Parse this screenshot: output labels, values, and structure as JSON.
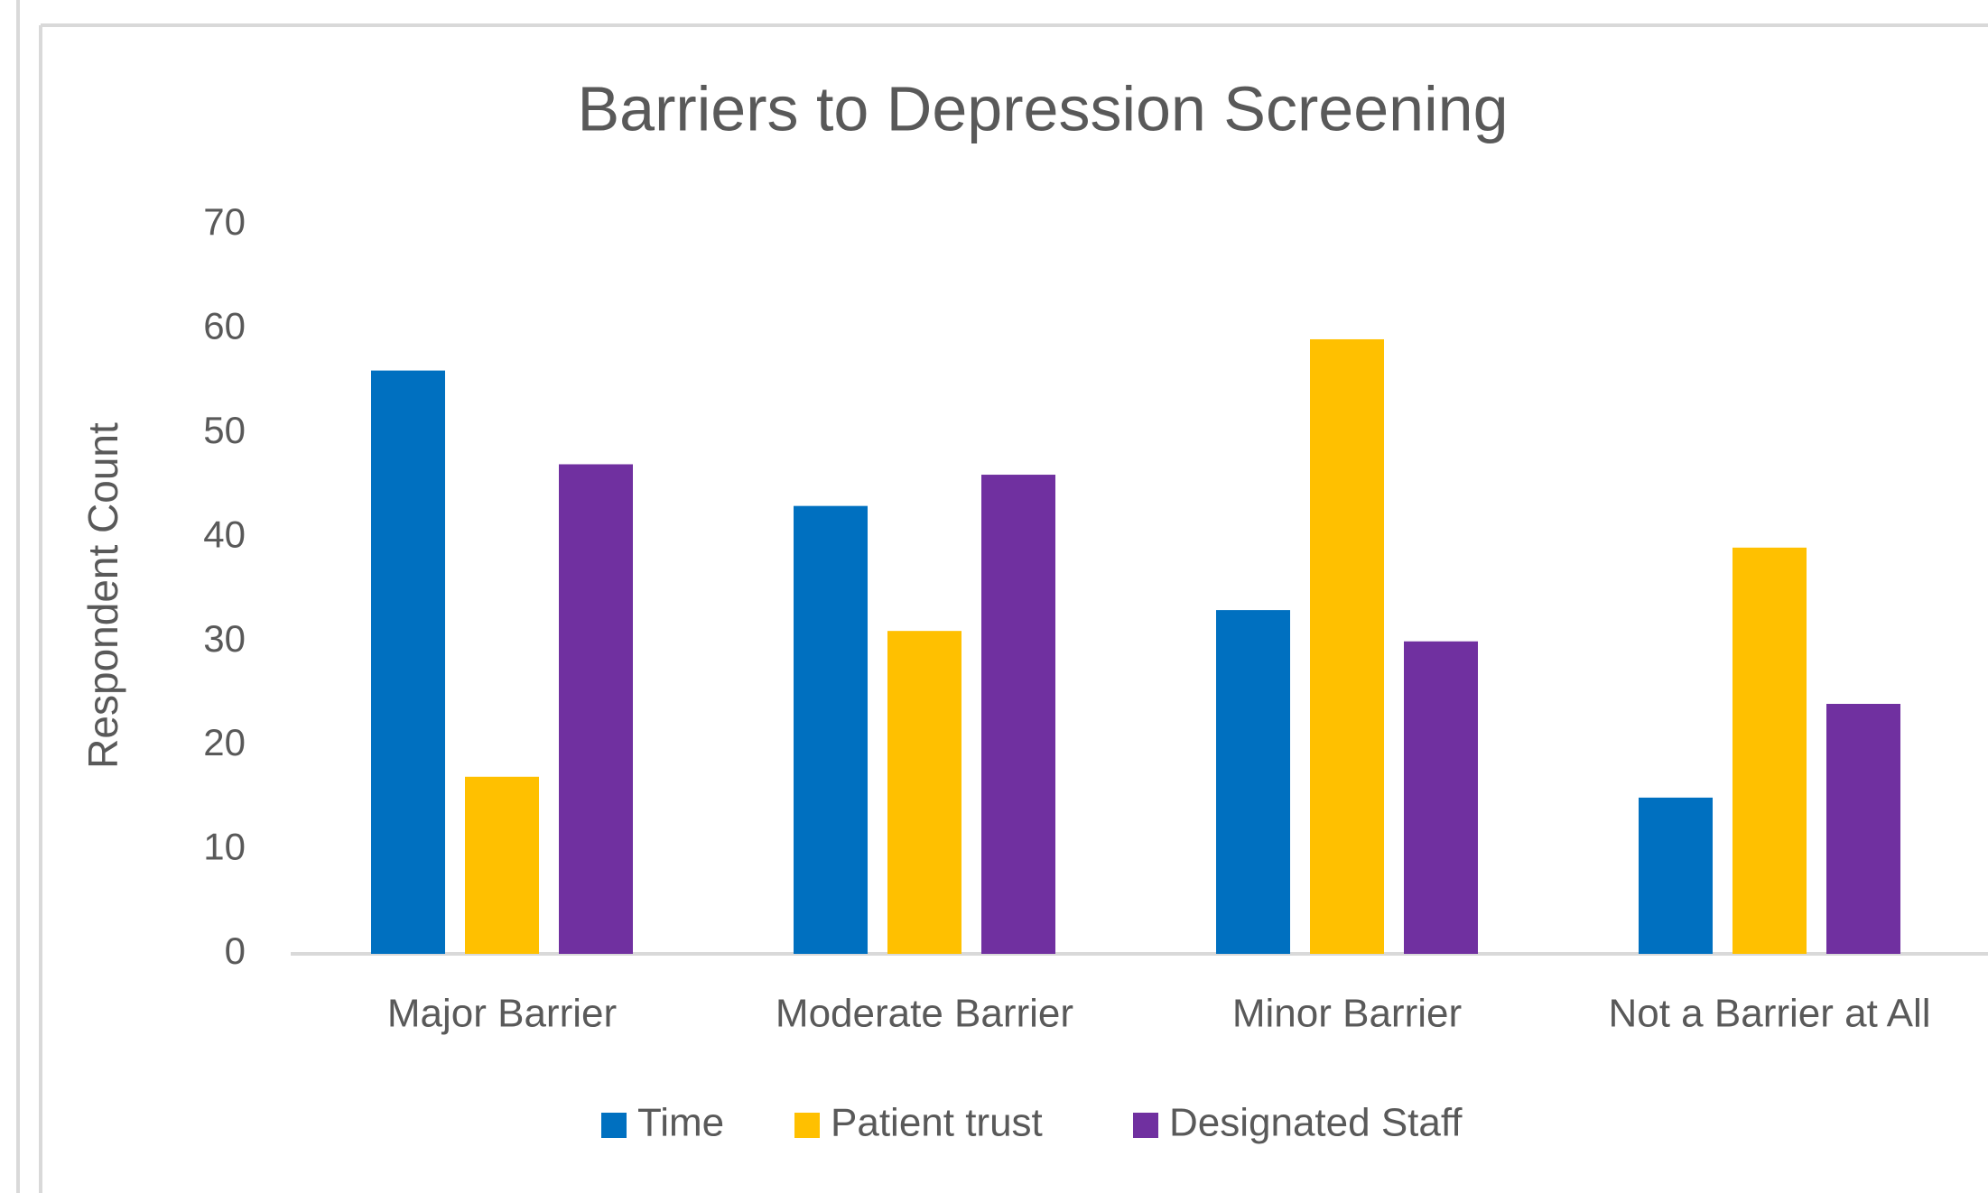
{
  "chart_data": {
    "type": "bar",
    "title": "Barriers to Depression Screening",
    "y_label": "Respondent Count",
    "categories": [
      "Major Barrier",
      "Moderate Barrier",
      "Minor Barrier",
      "Not a Barrier at All"
    ],
    "series": [
      {
        "name": "Time",
        "color": "#0070c0",
        "values": [
          56,
          43,
          33,
          15
        ]
      },
      {
        "name": "Patient trust",
        "color": "#ffc000",
        "values": [
          17,
          31,
          59,
          39
        ]
      },
      {
        "name": "Designated Staff",
        "color": "#7030a0",
        "values": [
          47,
          46,
          30,
          24
        ]
      }
    ],
    "ylim": [
      0,
      70
    ],
    "yticks": [
      0,
      10,
      20,
      30,
      40,
      50,
      60,
      70
    ],
    "grid": false,
    "legend": "bottom"
  }
}
